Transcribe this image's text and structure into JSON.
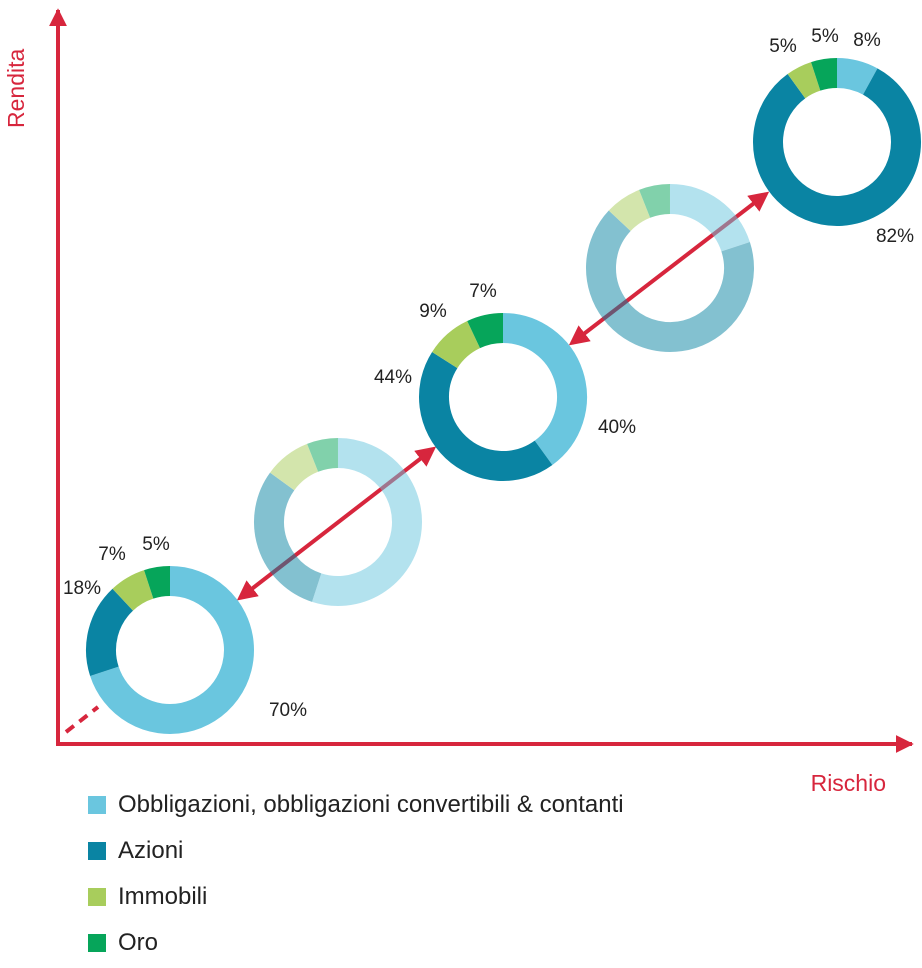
{
  "chart_data": {
    "type": "donut",
    "x_axis_label": "Rischio",
    "y_axis_label": "Rendita",
    "series_names": [
      "Obbligazioni, obbligazioni convertibili & contanti",
      "Azioni",
      "Immobili",
      "Oro"
    ],
    "colors": [
      "#6ac6df",
      "#0a84a3",
      "#a8cd5c",
      "#06a55a"
    ],
    "portfolios": [
      {
        "values": [
          70,
          18,
          7,
          5
        ],
        "labels": [
          "70%",
          "18%",
          "7%",
          "5%"
        ],
        "faded": false
      },
      {
        "values": [
          55,
          30,
          9,
          6
        ],
        "labels": [],
        "faded": true
      },
      {
        "values": [
          40,
          44,
          9,
          7
        ],
        "labels": [
          "40%",
          "44%",
          "9%",
          "7%"
        ],
        "faded": false
      },
      {
        "values": [
          20,
          67,
          7,
          6
        ],
        "labels": [],
        "faded": true
      },
      {
        "values": [
          8,
          82,
          5,
          5
        ],
        "labels": [
          "8%",
          "82%",
          "5%",
          "5%"
        ],
        "faded": false
      }
    ],
    "axis_color": "#d7263d",
    "legend_position": "bottom-left"
  }
}
